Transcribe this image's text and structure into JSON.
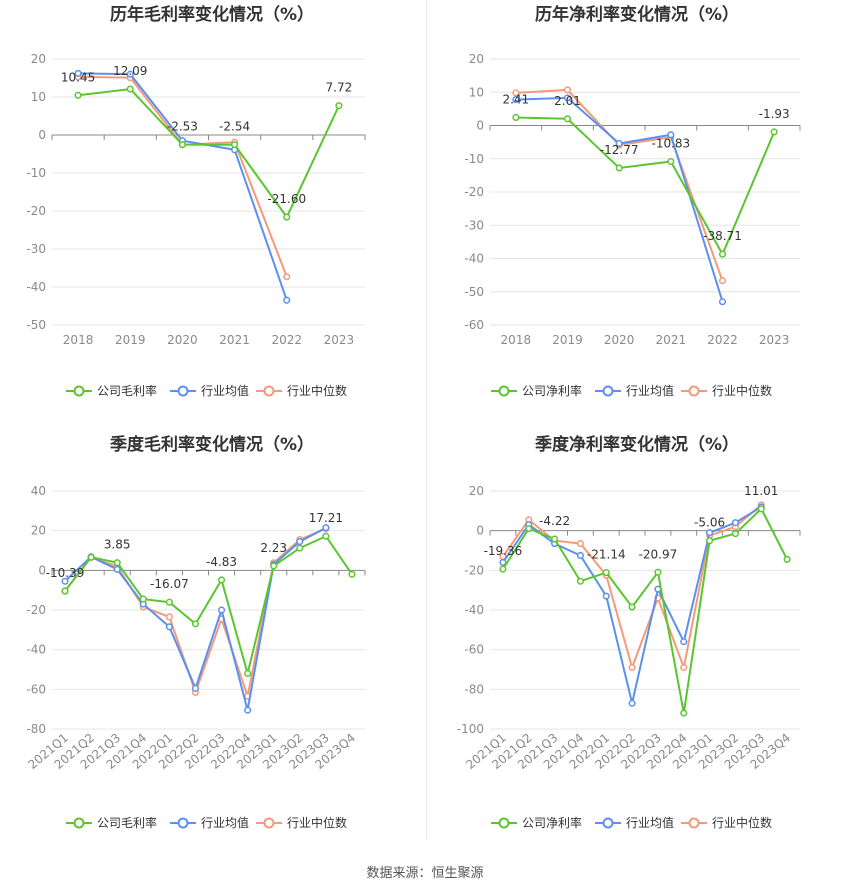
{
  "source_text": "数据来源：恒生聚源",
  "colors": {
    "company": "#5ac62f",
    "mean": "#5b8ff0",
    "median": "#f59a78"
  },
  "chart_data": [
    {
      "type": "line",
      "title": "历年毛利率变化情况（%）",
      "categories": [
        "2018",
        "2019",
        "2020",
        "2021",
        "2022",
        "2023"
      ],
      "ylim": [
        -50,
        20
      ],
      "yticks": [
        20,
        10,
        0,
        -10,
        -20,
        -30,
        -40,
        -50
      ],
      "grid": true,
      "legend_position": "bottom",
      "series": [
        {
          "name": "公司毛利率",
          "values": [
            10.45,
            12.09,
            -2.53,
            -2.54,
            -21.6,
            7.72
          ],
          "labels": [
            "10.45",
            "12.09",
            "-2.53",
            "-2.54",
            "-21.60",
            "7.72"
          ]
        },
        {
          "name": "行业均值",
          "values": [
            16.2,
            16.0,
            -1.5,
            -3.9,
            -43.5,
            null
          ]
        },
        {
          "name": "行业中位数",
          "values": [
            15.3,
            15.1,
            -2.6,
            -1.9,
            -37.3,
            null
          ]
        }
      ]
    },
    {
      "type": "line",
      "title": "历年净利率变化情况（%）",
      "categories": [
        "2018",
        "2019",
        "2020",
        "2021",
        "2022",
        "2023"
      ],
      "ylim": [
        -60,
        20
      ],
      "yticks": [
        20,
        10,
        0,
        -10,
        -20,
        -30,
        -40,
        -50,
        -60
      ],
      "grid": true,
      "legend_position": "bottom",
      "series": [
        {
          "name": "公司净利率",
          "values": [
            2.41,
            2.01,
            -12.77,
            -10.83,
            -38.71,
            -1.93
          ],
          "labels": [
            "2.41",
            "2.01",
            "-12.77",
            "-10.83",
            "-38.71",
            "-1.93"
          ]
        },
        {
          "name": "行业均值",
          "values": [
            7.8,
            8.3,
            -5.4,
            -2.8,
            -53.0,
            null
          ]
        },
        {
          "name": "行业中位数",
          "values": [
            9.8,
            10.7,
            -5.9,
            -3.5,
            -46.7,
            null
          ]
        }
      ]
    },
    {
      "type": "line",
      "title": "季度毛利率变化情况（%）",
      "categories": [
        "2021Q1",
        "2021Q2",
        "2021Q3",
        "2021Q4",
        "2022Q1",
        "2022Q2",
        "2022Q3",
        "2022Q4",
        "2023Q1",
        "2023Q2",
        "2023Q3",
        "2023Q4"
      ],
      "ylim": [
        -80,
        40
      ],
      "yticks": [
        40,
        20,
        0,
        -20,
        -40,
        -60,
        -80
      ],
      "grid": true,
      "legend_position": "bottom",
      "series": [
        {
          "name": "公司毛利率",
          "values": [
            -10.39,
            6.6,
            3.85,
            -14.5,
            -16.07,
            -27.0,
            -4.83,
            -52.0,
            2.23,
            11.2,
            17.21,
            -2.0
          ],
          "labels": [
            "-10.39",
            null,
            "3.85",
            null,
            "-16.07",
            null,
            "-4.83",
            null,
            "2.23",
            null,
            "17.21",
            null
          ]
        },
        {
          "name": "行业均值",
          "values": [
            -5.5,
            6.8,
            0.5,
            -17.0,
            -28.5,
            -59.5,
            -20.0,
            -70.5,
            3.0,
            14.5,
            21.5,
            null
          ]
        },
        {
          "name": "行业中位数",
          "values": [
            -10.5,
            6.5,
            2.0,
            -18.5,
            -23.5,
            -61.5,
            -24.5,
            -63.5,
            3.8,
            15.5,
            21.0,
            null
          ]
        }
      ]
    },
    {
      "type": "line",
      "title": "季度净利率变化情况（%）",
      "categories": [
        "2021Q1",
        "2021Q2",
        "2021Q3",
        "2021Q4",
        "2022Q1",
        "2022Q2",
        "2022Q3",
        "2022Q4",
        "2023Q1",
        "2023Q2",
        "2023Q3",
        "2023Q4"
      ],
      "ylim": [
        -100,
        20
      ],
      "yticks": [
        20,
        0,
        -20,
        -40,
        -60,
        -80,
        -100
      ],
      "grid": true,
      "legend_position": "bottom",
      "series": [
        {
          "name": "公司净利率",
          "values": [
            -19.36,
            1.0,
            -4.22,
            -25.5,
            -21.14,
            -38.5,
            -20.97,
            -92.0,
            -5.06,
            -1.5,
            11.01,
            -14.5
          ],
          "labels": [
            "-19.36",
            null,
            "-4.22",
            null,
            "-21.14",
            null,
            "-20.97",
            null,
            "-5.06",
            null,
            "11.01",
            null
          ]
        },
        {
          "name": "行业均值",
          "values": [
            -16.0,
            3.0,
            -6.5,
            -12.5,
            -33.0,
            -87.0,
            -29.5,
            -56.0,
            -1.0,
            4.0,
            12.0,
            null
          ]
        },
        {
          "name": "行业中位数",
          "values": [
            -13.0,
            5.5,
            -5.0,
            -6.5,
            -22.5,
            -69.0,
            -34.0,
            -69.0,
            -2.5,
            2.0,
            13.0,
            null
          ]
        }
      ]
    }
  ]
}
